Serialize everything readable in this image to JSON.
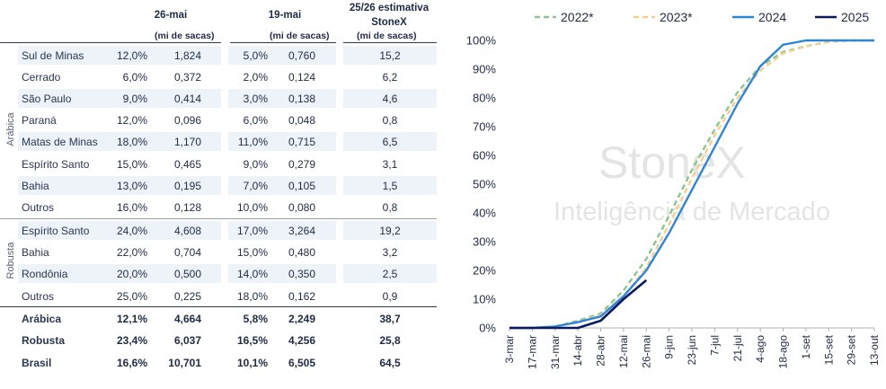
{
  "table": {
    "headers": {
      "week1": "26-mai",
      "week2": "19-mai",
      "estimate_line1": "25/26 estimativa",
      "estimate_line2": "StoneX",
      "unit": "(mi de sacas)"
    },
    "groups": {
      "arabica": "Arábica",
      "robusta": "Robusta"
    },
    "rows": [
      {
        "region": "Sul de Minas",
        "p1": "12,0%",
        "v1": "1,824",
        "p2": "5,0%",
        "v2": "0,760",
        "est": "15,2"
      },
      {
        "region": "Cerrado",
        "p1": "6,0%",
        "v1": "0,372",
        "p2": "2,0%",
        "v2": "0,124",
        "est": "6,2"
      },
      {
        "region": "São Paulo",
        "p1": "9,0%",
        "v1": "0,414",
        "p2": "3,0%",
        "v2": "0,138",
        "est": "4,6"
      },
      {
        "region": "Paraná",
        "p1": "12,0%",
        "v1": "0,096",
        "p2": "6,0%",
        "v2": "0,048",
        "est": "0,8"
      },
      {
        "region": "Matas de Minas",
        "p1": "18,0%",
        "v1": "1,170",
        "p2": "11,0%",
        "v2": "0,715",
        "est": "6,5"
      },
      {
        "region": "Espírito Santo",
        "p1": "15,0%",
        "v1": "0,465",
        "p2": "9,0%",
        "v2": "0,279",
        "est": "3,1"
      },
      {
        "region": "Bahia",
        "p1": "13,0%",
        "v1": "0,195",
        "p2": "7,0%",
        "v2": "0,105",
        "est": "1,5"
      },
      {
        "region": "Outros",
        "p1": "16,0%",
        "v1": "0,128",
        "p2": "10,0%",
        "v2": "0,080",
        "est": "0,8"
      },
      {
        "region": "Espírito Santo",
        "p1": "24,0%",
        "v1": "4,608",
        "p2": "17,0%",
        "v2": "3,264",
        "est": "19,2"
      },
      {
        "region": "Bahia",
        "p1": "22,0%",
        "v1": "0,704",
        "p2": "15,0%",
        "v2": "0,480",
        "est": "3,2"
      },
      {
        "region": "Rondônia",
        "p1": "20,0%",
        "v1": "0,500",
        "p2": "14,0%",
        "v2": "0,350",
        "est": "2,5"
      },
      {
        "region": "Outros",
        "p1": "25,0%",
        "v1": "0,225",
        "p2": "18,0%",
        "v2": "0,162",
        "est": "0,9"
      }
    ],
    "totals": [
      {
        "region": "Arábica",
        "p1": "12,1%",
        "v1": "4,664",
        "p2": "5,8%",
        "v2": "2,249",
        "est": "38,7"
      },
      {
        "region": "Robusta",
        "p1": "23,4%",
        "v1": "6,037",
        "p2": "16,5%",
        "v2": "4,256",
        "est": "25,8"
      },
      {
        "region": "Brasil",
        "p1": "16,6%",
        "v1": "10,701",
        "p2": "10,1%",
        "v2": "6,505",
        "est": "64,5"
      }
    ]
  },
  "chart_data": {
    "type": "line",
    "watermark": [
      "StoneX",
      "Inteligência de Mercado"
    ],
    "categories": [
      "3-mar",
      "17-mar",
      "31-mar",
      "14-abr",
      "28-abr",
      "12-mai",
      "26-mai",
      "9-jun",
      "23-jun",
      "7-jul",
      "21-jul",
      "4-ago",
      "18-ago",
      "1-set",
      "15-set",
      "29-set",
      "13-out"
    ],
    "y_ticks": [
      "0%",
      "10%",
      "20%",
      "30%",
      "40%",
      "50%",
      "60%",
      "70%",
      "80%",
      "90%",
      "100%"
    ],
    "ylim": [
      0,
      100
    ],
    "legend_position": "top",
    "grid": false,
    "series": [
      {
        "name": "2022*",
        "color": "#8dc58f",
        "dash": true,
        "values": [
          0,
          0,
          0.5,
          2.5,
          5,
          13,
          24,
          39,
          55,
          69,
          82,
          91,
          96,
          98,
          99.5,
          100,
          100
        ]
      },
      {
        "name": "2023*",
        "color": "#f3cf8f",
        "dash": true,
        "values": [
          0,
          0,
          0.5,
          2,
          4.5,
          11,
          21,
          36,
          52,
          67,
          80,
          89.5,
          95.5,
          98,
          99.5,
          100,
          100
        ]
      },
      {
        "name": "2024",
        "color": "#2f86d6",
        "dash": false,
        "values": [
          0,
          0,
          0.5,
          2,
          4,
          11,
          20,
          33,
          48,
          63,
          78,
          91,
          98.5,
          100,
          100,
          100,
          100
        ]
      },
      {
        "name": "2025",
        "color": "#0b1a5c",
        "dash": false,
        "values": [
          0,
          0,
          0,
          0,
          2.5,
          10,
          16.6,
          null,
          null,
          null,
          null,
          null,
          null,
          null,
          null,
          null,
          null
        ]
      }
    ]
  }
}
